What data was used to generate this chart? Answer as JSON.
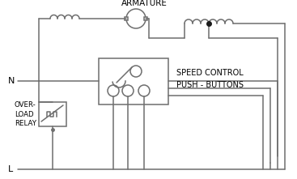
{
  "bg_color": "#ffffff",
  "line_color": "#6e6e6e",
  "dark_color": "#1a1a1a",
  "text_color": "#000000",
  "armature_label": "ARMATURE",
  "speed_control_label": "SPEED CONTROL\nPUSH - BUTTONS",
  "overload_label": "OVER-\nLOAD\nRELAY",
  "n_label": "N",
  "l_label": "L",
  "figw": 3.67,
  "figh": 2.21,
  "dpi": 100
}
